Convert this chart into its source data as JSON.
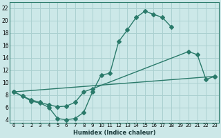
{
  "xlabel": "Humidex (Indice chaleur)",
  "background_color": "#cce8e8",
  "grid_color": "#aad0d0",
  "line_color": "#2a7a6a",
  "xlim": [
    -0.5,
    23.5
  ],
  "ylim": [
    3.5,
    23
  ],
  "xticks": [
    0,
    1,
    2,
    3,
    4,
    5,
    6,
    7,
    8,
    9,
    10,
    11,
    12,
    13,
    14,
    15,
    16,
    17,
    18,
    19,
    20,
    21,
    22,
    23
  ],
  "yticks": [
    4,
    6,
    8,
    10,
    12,
    14,
    16,
    18,
    20,
    22
  ],
  "curve1_x": [
    0,
    1,
    2,
    3,
    4,
    5,
    6,
    7,
    8,
    9,
    10,
    11,
    12,
    13,
    14,
    15,
    16,
    17,
    18
  ],
  "curve1_y": [
    8.5,
    7.8,
    7.0,
    6.7,
    6.0,
    4.2,
    4.0,
    4.2,
    5.2,
    8.5,
    11.2,
    11.5,
    16.6,
    18.5,
    20.5,
    21.5,
    21.0,
    20.5,
    19.0
  ],
  "curve2_x": [
    0,
    1,
    2,
    3,
    4,
    5,
    6,
    7,
    8,
    9,
    20,
    21,
    22,
    23
  ],
  "curve2_y": [
    8.5,
    7.8,
    7.2,
    6.8,
    6.4,
    6.1,
    6.2,
    6.8,
    8.5,
    9.0,
    15.0,
    14.5,
    10.5,
    11.0
  ],
  "curve3_x": [
    0,
    23
  ],
  "curve3_y": [
    8.5,
    11.0
  ],
  "marker_size": 3
}
